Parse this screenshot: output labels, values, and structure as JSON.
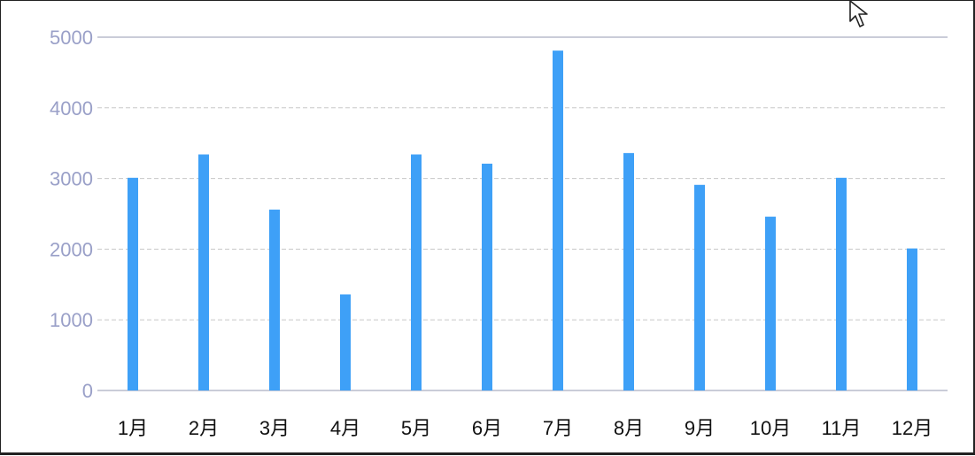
{
  "chart_data": {
    "type": "bar",
    "categories": [
      "1月",
      "2月",
      "3月",
      "4月",
      "5月",
      "6月",
      "7月",
      "8月",
      "9月",
      "10月",
      "11月",
      "12月"
    ],
    "values": [
      3010,
      3340,
      2560,
      1360,
      3340,
      3210,
      4810,
      3360,
      2910,
      2460,
      3010,
      2010
    ],
    "title": "",
    "xlabel": "",
    "ylabel": "",
    "ylim": [
      0,
      5000
    ],
    "yticks": [
      "0",
      "1000",
      "2000",
      "3000",
      "4000",
      "5000"
    ],
    "grid": true,
    "legend": "none",
    "colors": {
      "bar": "#3ea0f7",
      "ytick": "#9aa0c8",
      "grid": "#c8c8c8",
      "axis": "#b8bccc"
    }
  },
  "icons": {
    "cursor": "mouse-pointer-icon"
  }
}
